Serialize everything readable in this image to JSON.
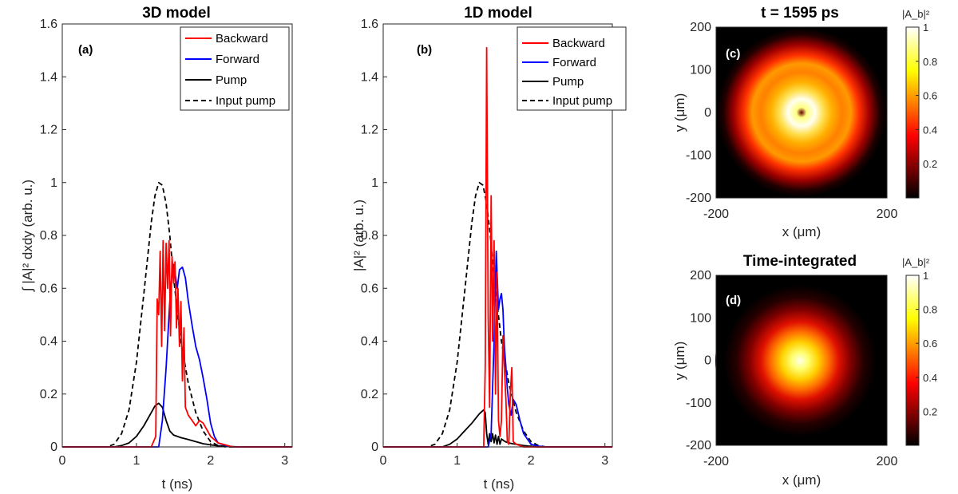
{
  "colors": {
    "backward": "#ff0000",
    "forward": "#0000ff",
    "pump": "#000000",
    "input_pump": "#000000",
    "axes": "#262626"
  },
  "chart_data": [
    {
      "type": "line",
      "title": "3D model",
      "panel_label": "(a)",
      "xlabel": "t (ns)",
      "ylabel": "∫ |A|² dxdy (arb. u.)",
      "xlim": [
        0,
        3.1
      ],
      "ylim": [
        0,
        1.6
      ],
      "xticks": [
        "0",
        "1",
        "2",
        "3"
      ],
      "yticks": [
        "0",
        "0.2",
        "0.4",
        "0.6",
        "0.8",
        "1",
        "1.2",
        "1.4",
        "1.6"
      ],
      "legend_position": "top-right",
      "series": [
        {
          "name": "Backward",
          "color": "#ff0000",
          "style": "solid",
          "x": [
            0,
            1.2,
            1.26,
            1.28,
            1.3,
            1.32,
            1.34,
            1.36,
            1.38,
            1.4,
            1.42,
            1.44,
            1.46,
            1.48,
            1.5,
            1.52,
            1.54,
            1.56,
            1.58,
            1.6,
            1.62,
            1.64,
            1.66,
            1.7,
            1.75,
            1.8,
            1.85,
            1.9,
            2.0,
            2.1,
            2.3,
            3.1
          ],
          "y": [
            0,
            0,
            0.04,
            0.56,
            0.5,
            0.74,
            0.38,
            0.78,
            0.44,
            0.77,
            0.6,
            0.78,
            0.42,
            0.72,
            0.62,
            0.7,
            0.45,
            0.6,
            0.38,
            0.55,
            0.25,
            0.45,
            0.15,
            0.12,
            0.1,
            0.08,
            0.1,
            0.09,
            0.04,
            0.015,
            0,
            0
          ]
        },
        {
          "name": "Forward",
          "color": "#0000ff",
          "style": "solid",
          "x": [
            0,
            1.3,
            1.35,
            1.4,
            1.45,
            1.48,
            1.5,
            1.52,
            1.55,
            1.58,
            1.62,
            1.66,
            1.7,
            1.75,
            1.8,
            1.85,
            1.9,
            1.95,
            2.0,
            2.05,
            2.1,
            2.2,
            2.3,
            3.1
          ],
          "y": [
            0,
            0,
            0.1,
            0.3,
            0.55,
            0.66,
            0.69,
            0.66,
            0.6,
            0.67,
            0.68,
            0.64,
            0.55,
            0.46,
            0.38,
            0.33,
            0.26,
            0.18,
            0.09,
            0.04,
            0.015,
            0.005,
            0,
            0
          ]
        },
        {
          "name": "Pump",
          "color": "#000000",
          "style": "solid",
          "x": [
            0,
            0.7,
            0.8,
            0.9,
            1.0,
            1.1,
            1.2,
            1.25,
            1.3,
            1.35,
            1.4,
            1.45,
            1.5,
            1.6,
            1.7,
            1.8,
            1.9,
            2.0,
            2.1,
            2.2,
            2.4,
            3.1
          ],
          "y": [
            0,
            0,
            0.005,
            0.015,
            0.04,
            0.08,
            0.13,
            0.155,
            0.165,
            0.15,
            0.1,
            0.06,
            0.045,
            0.035,
            0.028,
            0.02,
            0.012,
            0.008,
            0.004,
            0.002,
            0,
            0
          ]
        },
        {
          "name": "Input pump",
          "color": "#000000",
          "style": "dashed",
          "x": [
            0,
            0.6,
            0.7,
            0.8,
            0.9,
            1.0,
            1.1,
            1.2,
            1.25,
            1.3,
            1.35,
            1.4,
            1.45,
            1.5,
            1.6,
            1.7,
            1.8,
            1.9,
            2.0,
            2.1,
            2.2,
            3.1
          ],
          "y": [
            0,
            0,
            0.01,
            0.05,
            0.14,
            0.32,
            0.58,
            0.85,
            0.95,
            1.0,
            0.99,
            0.92,
            0.8,
            0.64,
            0.4,
            0.24,
            0.13,
            0.06,
            0.02,
            0.005,
            0,
            0
          ]
        }
      ]
    },
    {
      "type": "line",
      "title": "1D model",
      "panel_label": "(b)",
      "xlabel": "t (ns)",
      "ylabel": "|A|² (arb. u.)",
      "xlim": [
        0,
        3.1
      ],
      "ylim": [
        0,
        1.6
      ],
      "xticks": [
        "0",
        "1",
        "2",
        "3"
      ],
      "yticks": [
        "0",
        "0.2",
        "0.4",
        "0.6",
        "0.8",
        "1",
        "1.2",
        "1.4",
        "1.6"
      ],
      "legend_position": "top-right",
      "series": [
        {
          "name": "Backward",
          "color": "#ff0000",
          "style": "solid",
          "x": [
            0,
            1.36,
            1.38,
            1.4,
            1.42,
            1.44,
            1.46,
            1.48,
            1.5,
            1.52,
            1.54,
            1.56,
            1.58,
            1.6,
            1.62,
            1.64,
            1.66,
            1.68,
            1.7,
            1.72,
            1.74,
            1.76,
            1.8,
            1.9,
            3.1
          ],
          "y": [
            0,
            0,
            0.3,
            1.51,
            0.5,
            0.15,
            0.95,
            0.4,
            0.78,
            0.2,
            0.66,
            0.1,
            0.04,
            0.1,
            0.42,
            0.3,
            0.18,
            0.02,
            0.01,
            0.2,
            0.3,
            0.02,
            0.01,
            0,
            0
          ]
        },
        {
          "name": "Forward",
          "color": "#0000ff",
          "style": "solid",
          "x": [
            0,
            1.42,
            1.46,
            1.5,
            1.53,
            1.56,
            1.58,
            1.6,
            1.62,
            1.64,
            1.66,
            1.68,
            1.7,
            1.73,
            1.76,
            1.8,
            1.85,
            1.9,
            2.0,
            2.1,
            2.2,
            3.1
          ],
          "y": [
            0,
            0,
            0.05,
            0.4,
            0.74,
            0.52,
            0.56,
            0.58,
            0.52,
            0.38,
            0.3,
            0.22,
            0.16,
            0.12,
            0.18,
            0.16,
            0.1,
            0.05,
            0.01,
            0.003,
            0,
            0
          ]
        },
        {
          "name": "Pump",
          "color": "#000000",
          "style": "solid",
          "x": [
            0,
            0.8,
            0.9,
            1.0,
            1.1,
            1.2,
            1.3,
            1.36,
            1.38,
            1.4,
            1.42,
            1.44,
            1.46,
            1.48,
            1.5,
            1.52,
            1.54,
            1.56,
            1.58,
            1.6,
            1.65,
            1.7,
            1.75,
            1.8,
            1.9,
            2.0,
            2.1,
            3.1
          ],
          "y": [
            0,
            0,
            0.01,
            0.03,
            0.06,
            0.09,
            0.125,
            0.14,
            0.13,
            0.05,
            0.01,
            0.05,
            0.02,
            0.05,
            0.015,
            0.045,
            0.01,
            0.04,
            0.01,
            0.03,
            0.02,
            0.015,
            0.012,
            0.01,
            0.005,
            0.002,
            0,
            0
          ]
        },
        {
          "name": "Input pump",
          "color": "#000000",
          "style": "dashed",
          "x": [
            0,
            0.6,
            0.7,
            0.8,
            0.9,
            1.0,
            1.1,
            1.2,
            1.25,
            1.3,
            1.35,
            1.4,
            1.45,
            1.5,
            1.6,
            1.7,
            1.8,
            1.9,
            2.0,
            2.1,
            2.2,
            3.1
          ],
          "y": [
            0,
            0,
            0.01,
            0.05,
            0.14,
            0.32,
            0.58,
            0.85,
            0.95,
            1.0,
            0.99,
            0.92,
            0.8,
            0.64,
            0.4,
            0.24,
            0.13,
            0.06,
            0.02,
            0.005,
            0,
            0
          ]
        }
      ]
    },
    {
      "type": "heatmap",
      "title": "t = 1595 ps",
      "panel_label": "(c)",
      "xlabel": "x (μm)",
      "ylabel": "y (μm)",
      "xlim": [
        -200,
        200
      ],
      "ylim": [
        -200,
        200
      ],
      "xticks": [
        "-200",
        "200"
      ],
      "yticks": [
        "200",
        "100",
        "0",
        "-100",
        "-200"
      ],
      "colorbar_label": "|A_b|²",
      "colorbar_ticks": [
        "1",
        "0.8",
        "0.6",
        "0.4",
        "0.2"
      ],
      "colorbar_range": [
        0,
        1
      ],
      "colormap": "hot",
      "pattern": "ring"
    },
    {
      "type": "heatmap",
      "title": "Time-integrated",
      "panel_label": "(d)",
      "xlabel": "x (μm)",
      "ylabel": "y (μm)",
      "xlim": [
        -200,
        200
      ],
      "ylim": [
        -200,
        200
      ],
      "xticks": [
        "-200",
        "200"
      ],
      "yticks": [
        "200",
        "100",
        "0",
        "-100",
        "-200"
      ],
      "colorbar_label": "|A_b|²",
      "colorbar_ticks": [
        "1",
        "0.8",
        "0.6",
        "0.4",
        "0.2"
      ],
      "colorbar_range": [
        0,
        1
      ],
      "colormap": "hot",
      "pattern": "gaussian"
    }
  ]
}
